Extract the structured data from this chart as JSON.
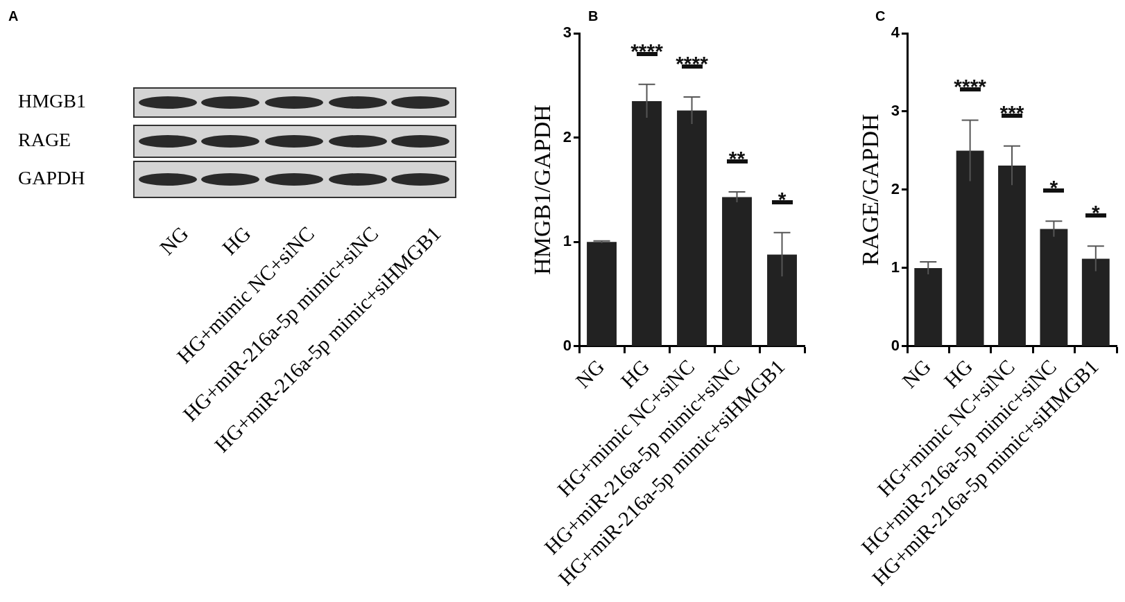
{
  "chart_data": [
    {
      "type": "other",
      "title": "A",
      "categories": [
        "NG",
        "HG",
        "HG+mimic NC+siNC",
        "HG+miR-216a-5p mimic+siNC",
        "HG+miR-216a-5p mimic+siHMGB1"
      ],
      "y_categories": [
        "HMGB1",
        "RAGE",
        "GAPDH"
      ]
    },
    {
      "type": "bar",
      "title": "B",
      "ylabel": "HMGB1/GAPDH",
      "categories": [
        "NG",
        "HG",
        "HG+mimic NC+siNC",
        "HG+miR-216a-5p mimic+siNC",
        "HG+miR-216a-5p mimic+siHMGB1"
      ],
      "values": [
        1.0,
        2.35,
        2.26,
        1.43,
        0.88
      ],
      "errors": [
        0.01,
        0.16,
        0.13,
        0.05,
        0.21
      ],
      "color": "#222222",
      "ylim": [
        0,
        3
      ],
      "yticks": [
        0,
        1,
        2,
        3
      ],
      "grid": false,
      "annotations": [
        "****",
        "****",
        "**",
        "*"
      ]
    },
    {
      "type": "bar",
      "title": "C",
      "ylabel": "RAGE/GAPDH",
      "categories": [
        "NG",
        "HG",
        "HG+mimic NC+siNC",
        "HG+miR-216a-5p mimic+siNC",
        "HG+miR-216a-5p mimic+siHMGB1"
      ],
      "values": [
        1.0,
        2.5,
        2.31,
        1.5,
        1.12
      ],
      "errors": [
        0.08,
        0.39,
        0.25,
        0.1,
        0.16
      ],
      "color": "#222222",
      "ylim": [
        0,
        4
      ],
      "yticks": [
        0,
        1,
        2,
        3,
        4
      ],
      "grid": false,
      "annotations": [
        "****",
        "***",
        "*",
        "*"
      ]
    }
  ]
}
